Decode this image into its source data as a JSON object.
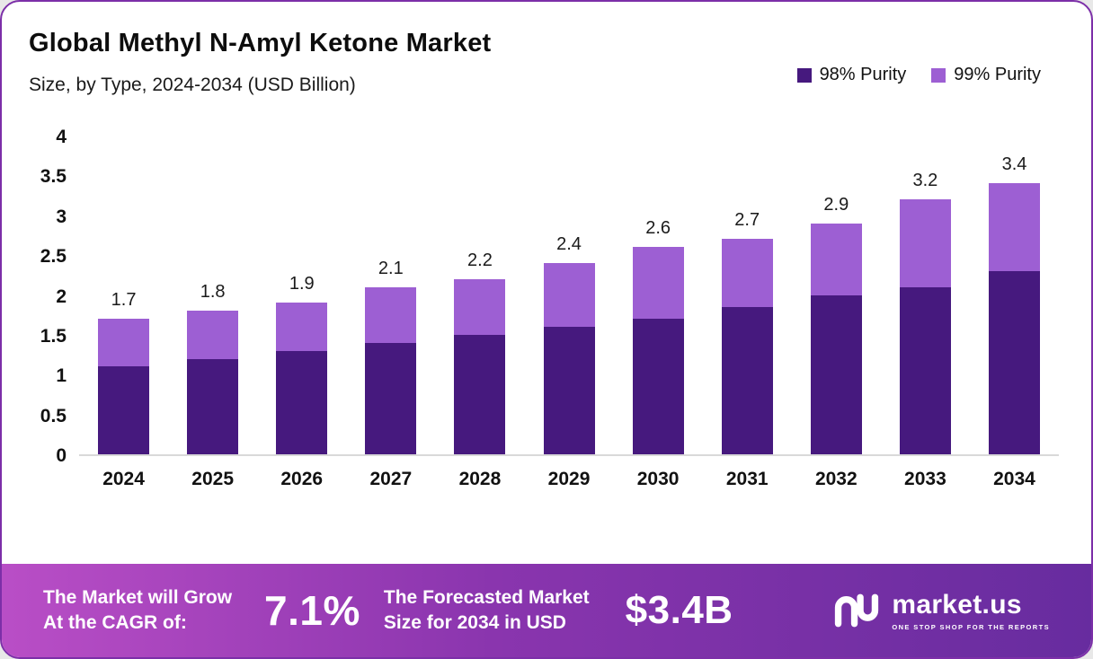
{
  "chart_data": {
    "type": "bar",
    "stacked": true,
    "title": "Global Methyl N-Amyl Ketone Market",
    "subtitle": "Size, by Type, 2024-2034 (USD Billion)",
    "categories": [
      "2024",
      "2025",
      "2026",
      "2027",
      "2028",
      "2029",
      "2030",
      "2031",
      "2032",
      "2033",
      "2034"
    ],
    "series": [
      {
        "name": "98% Purity",
        "color": "#46197e",
        "values": [
          1.1,
          1.2,
          1.3,
          1.4,
          1.5,
          1.6,
          1.7,
          1.85,
          2.0,
          2.1,
          2.3
        ]
      },
      {
        "name": "99% Purity",
        "color": "#9d5fd3",
        "values": [
          0.6,
          0.6,
          0.6,
          0.7,
          0.7,
          0.8,
          0.9,
          0.85,
          0.9,
          1.1,
          1.1
        ]
      }
    ],
    "totals": [
      "1.7",
      "1.8",
      "1.9",
      "2.1",
      "2.2",
      "2.4",
      "2.6",
      "2.7",
      "2.9",
      "3.2",
      "3.4"
    ],
    "ylim": [
      0,
      4
    ],
    "ytick_labels": [
      "0",
      "0.5",
      "1",
      "1.5",
      "2",
      "2.5",
      "3",
      "3.5",
      "4"
    ],
    "grid": false,
    "legend_position": "top-right",
    "xlabel": "",
    "ylabel": ""
  },
  "footer": {
    "growth_label_line1": "The Market will Grow",
    "growth_label_line2": "At the CAGR of:",
    "cagr_value": "7.1%",
    "forecast_label_line1": "The Forecasted Market",
    "forecast_label_line2": "Size for 2034 in USD",
    "forecast_value": "$3.4B",
    "brand_name": "market.us",
    "brand_tagline": "ONE STOP SHOP FOR THE REPORTS"
  }
}
